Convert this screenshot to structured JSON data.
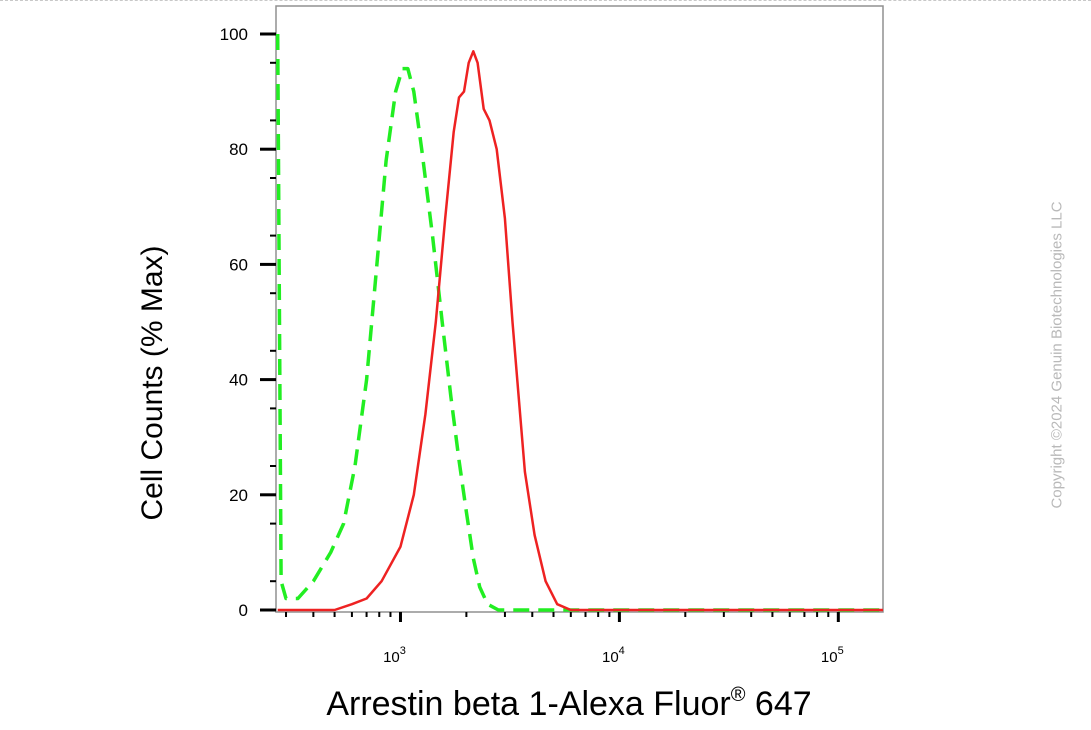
{
  "chart_data": {
    "type": "line",
    "title": "",
    "xlabel": "Arrestin beta 1-Alexa Fluor",
    "xlabel_sup": "®",
    "xlabel_tail": " 647",
    "ylabel": "Cell Counts (% Max)",
    "x_scale": "log",
    "xlim": [
      270,
      160000
    ],
    "ylim": [
      0,
      105
    ],
    "x_ticks": [
      {
        "value": 1000,
        "base": "10",
        "exp": "3"
      },
      {
        "value": 10000,
        "base": "10",
        "exp": "4"
      },
      {
        "value": 100000,
        "base": "10",
        "exp": "5"
      }
    ],
    "y_ticks": [
      0,
      20,
      40,
      60,
      80,
      100
    ],
    "grid": false,
    "legend": "none",
    "series": [
      {
        "color": "#22ee22",
        "dash": "dashed",
        "points": [
          [
            275,
            100
          ],
          [
            285,
            5
          ],
          [
            300,
            2
          ],
          [
            340,
            2
          ],
          [
            400,
            5
          ],
          [
            480,
            10
          ],
          [
            550,
            15
          ],
          [
            620,
            25
          ],
          [
            700,
            40
          ],
          [
            780,
            60
          ],
          [
            860,
            78
          ],
          [
            950,
            90
          ],
          [
            1020,
            94
          ],
          [
            1080,
            94
          ],
          [
            1150,
            90
          ],
          [
            1250,
            80
          ],
          [
            1400,
            65
          ],
          [
            1550,
            50
          ],
          [
            1700,
            37
          ],
          [
            1850,
            26
          ],
          [
            2000,
            17
          ],
          [
            2150,
            9
          ],
          [
            2300,
            4
          ],
          [
            2500,
            1
          ],
          [
            2800,
            0
          ],
          [
            3500,
            0
          ],
          [
            10000,
            0
          ],
          [
            160000,
            0
          ]
        ]
      },
      {
        "color": "#ee2222",
        "dash": "solid",
        "points": [
          [
            275,
            0
          ],
          [
            500,
            0
          ],
          [
            600,
            1
          ],
          [
            700,
            2
          ],
          [
            820,
            5
          ],
          [
            1000,
            11
          ],
          [
            1150,
            20
          ],
          [
            1300,
            34
          ],
          [
            1450,
            50
          ],
          [
            1600,
            68
          ],
          [
            1750,
            83
          ],
          [
            1850,
            89
          ],
          [
            1950,
            90
          ],
          [
            2050,
            95
          ],
          [
            2150,
            97
          ],
          [
            2250,
            95
          ],
          [
            2400,
            87
          ],
          [
            2550,
            85
          ],
          [
            2750,
            80
          ],
          [
            3000,
            68
          ],
          [
            3250,
            50
          ],
          [
            3450,
            38
          ],
          [
            3700,
            24
          ],
          [
            4100,
            13
          ],
          [
            4600,
            5
          ],
          [
            5200,
            1
          ],
          [
            6000,
            0
          ],
          [
            160000,
            0
          ]
        ]
      }
    ]
  },
  "watermark": "Copyright ©2024 Genuin Biotechnologies LLC"
}
